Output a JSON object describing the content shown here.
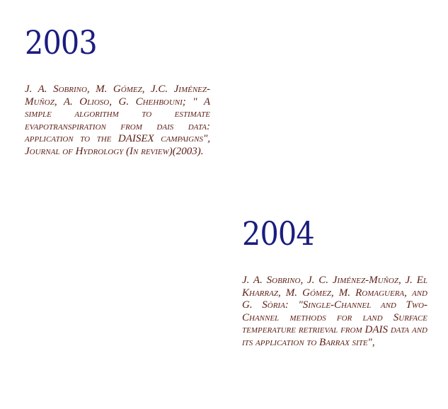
{
  "entries": [
    {
      "year": "2003",
      "text": "J. A. Sobrino, M. Gómez, J.C. Jiménez-Muñoz, A. Olioso, G. Chehbouni; \" A simple algorithm to estimate evapotranspiration from dais data: application to the DAISEX campaigns\", Journal of Hydrology (In review)(2003)."
    },
    {
      "year": "2004",
      "text": "J. A. Sobrino, J. C. Jiménez-Muñoz, J. El Kharraz, M. Gómez, M. Romaguera, and G. Sòria: \"Single-Channel and Two-Channel methods for land Surface temperature retrieval from DAIS data and its application to Barrax site\","
    }
  ]
}
